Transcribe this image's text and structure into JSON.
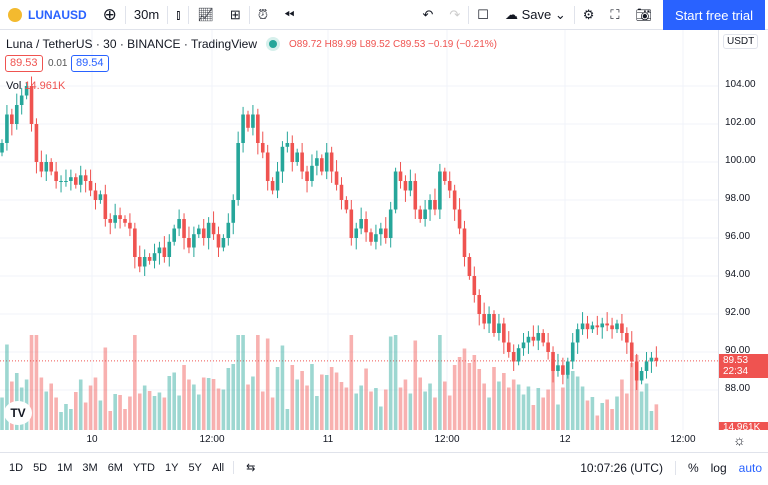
{
  "toolbar": {
    "symbol": "LUNAUSD",
    "interval": "30m",
    "save": "Save",
    "trial": "Start free trial"
  },
  "legend": {
    "title": "Luna / TetherUS · 30 · BINANCE · TradingView",
    "open": "O89.72",
    "high": "H89.99",
    "low": "L89.52",
    "close": "C89.53",
    "change": "−0.19 (−0.21%)",
    "bid": "89.53",
    "spread": "0.01",
    "ask": "89.54",
    "vol_label": "Vol",
    "vol_value": "14.961K"
  },
  "price_axis": {
    "currency": "USDT",
    "ticks": [
      "104.00",
      "102.00",
      "100.00",
      "98.00",
      "96.00",
      "94.00",
      "92.00",
      "90.00",
      "88.00"
    ],
    "last_price": "89.53",
    "countdown": "22:34",
    "last_volume": "14.961K"
  },
  "time_axis": {
    "labels": [
      "10",
      "12:00",
      "11",
      "12:00",
      "12",
      "12:00"
    ]
  },
  "bottom": {
    "ranges": [
      "1D",
      "5D",
      "1M",
      "3M",
      "6M",
      "YTD",
      "1Y",
      "5Y",
      "All"
    ],
    "clock": "10:07:26 (UTC)",
    "pct": "%",
    "log": "log",
    "auto": "auto"
  },
  "colors": {
    "up": "#26a69a",
    "down": "#ef5350",
    "accent": "#2962ff"
  },
  "chart_data": {
    "type": "candlestick",
    "ylim": [
      87,
      105
    ],
    "closes": [
      101,
      102.5,
      102,
      103,
      103.5,
      104,
      102,
      100,
      99.5,
      100,
      99.5,
      99,
      99,
      99,
      99.2,
      98.8,
      99.3,
      99,
      98.5,
      98,
      98.3,
      97,
      96.8,
      97.2,
      97,
      96.8,
      96.5,
      95,
      94.5,
      95,
      94.8,
      95.2,
      95.5,
      95,
      95.8,
      96.5,
      97,
      96,
      95.5,
      96.2,
      96.5,
      96,
      96.8,
      96.2,
      95.5,
      96,
      96.8,
      98,
      101,
      102.5,
      101.8,
      102.5,
      101,
      100.5,
      99,
      98.5,
      99.5,
      100.8,
      101,
      100,
      100.5,
      99.5,
      99,
      99.8,
      100.2,
      99.5,
      100.5,
      99.5,
      98.8,
      98,
      97.5,
      96,
      96.5,
      97,
      96.3,
      95.8,
      96.2,
      96.5,
      96,
      97.5,
      99.5,
      99,
      98.5,
      99,
      97.5,
      97,
      97.5,
      98,
      97.5,
      99.5,
      99,
      98.5,
      97.5,
      96.5,
      95,
      94,
      93,
      92,
      91.5,
      92,
      91,
      91.5,
      90.5,
      90,
      89.5,
      90.2,
      90.5,
      90.8,
      90.6,
      91,
      90.5,
      90,
      89,
      89.3,
      88.8,
      89.5,
      90.5,
      91.2,
      91.5,
      91.2,
      91.4,
      91.3,
      91.5,
      91.4,
      91.2,
      91.5,
      91,
      90.5,
      89.5,
      88.5,
      89,
      89.5,
      89.7,
      89.53
    ]
  }
}
